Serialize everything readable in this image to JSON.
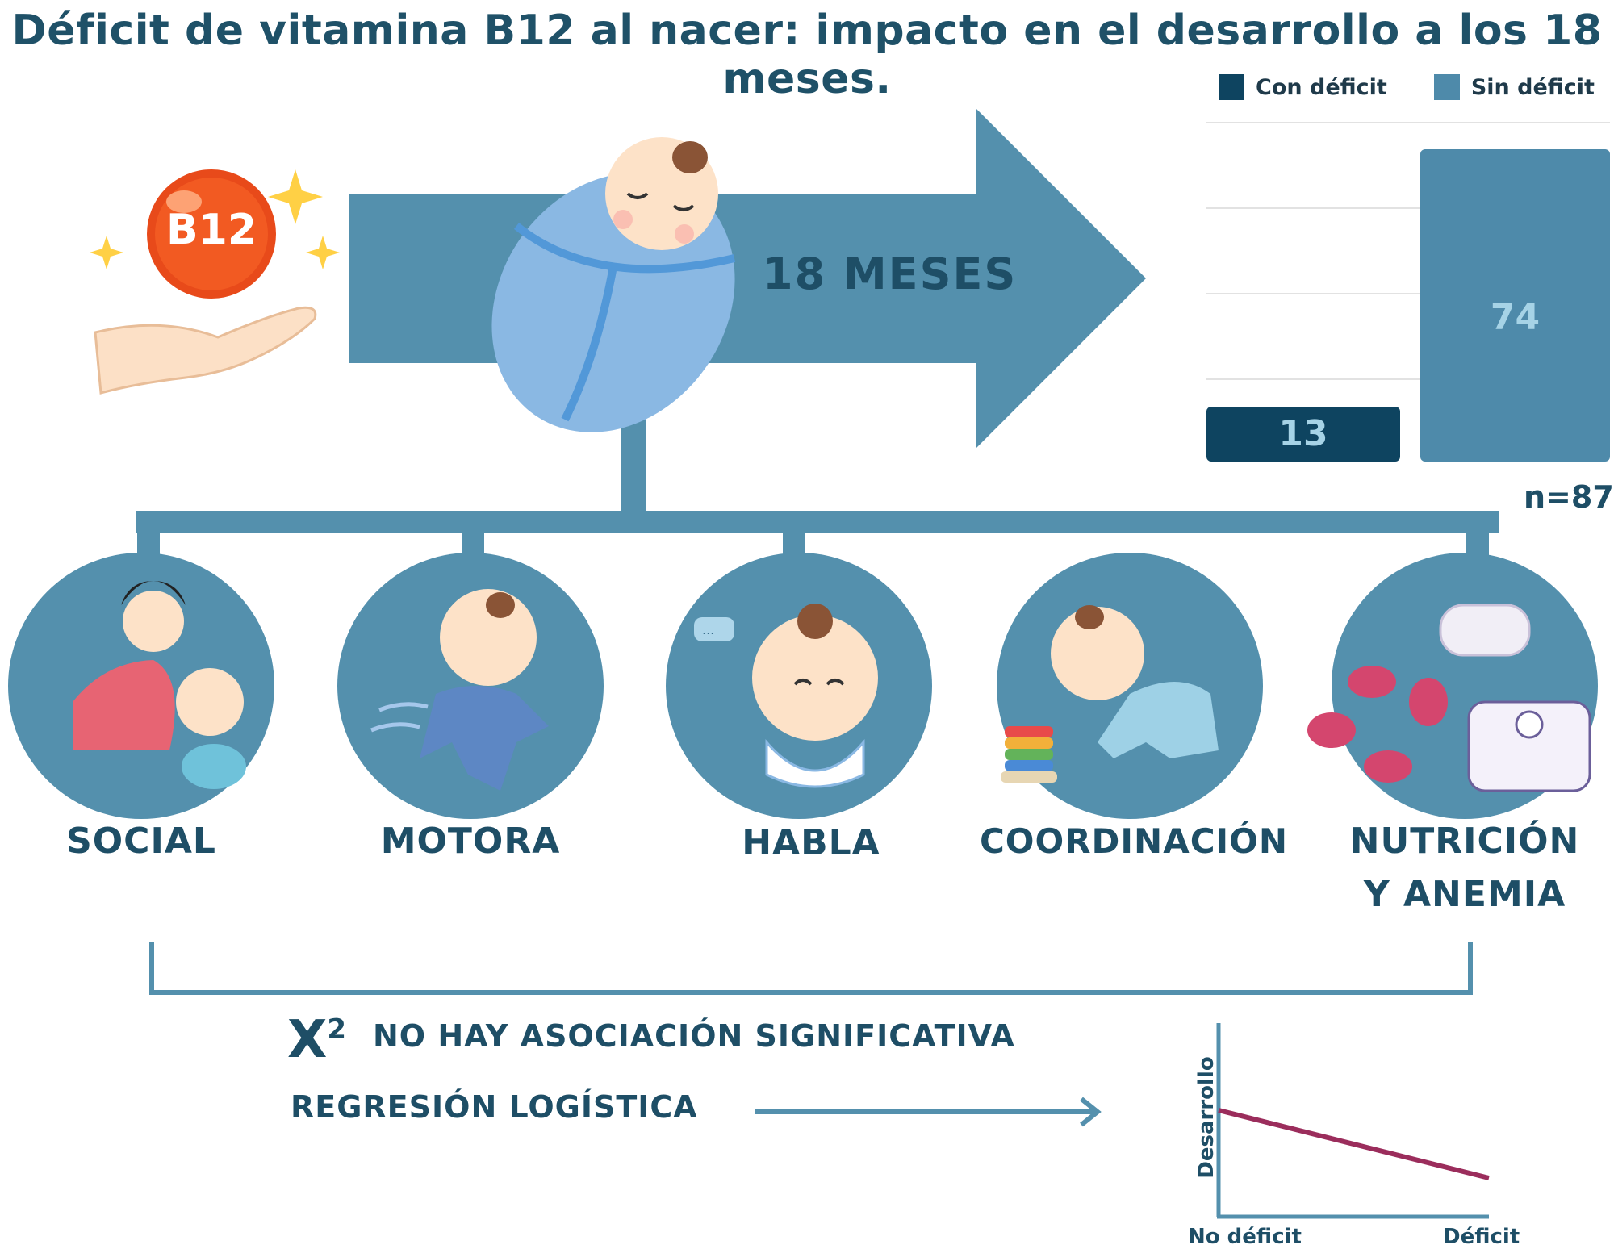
{
  "title": "Déficit de vitamina B12 al nacer: impacto en el desarrollo a los 18 meses.",
  "vitamin_badge": "B12",
  "arrow_label": "18 MESES",
  "legend": [
    {
      "label": "Con déficit",
      "color": "#0e4460"
    },
    {
      "label": "Sin déficit",
      "color": "#4e8aaa"
    }
  ],
  "chart_data": [
    {
      "type": "bar",
      "categories": [
        "Con déficit",
        "Sin déficit"
      ],
      "values": [
        13,
        74
      ],
      "colors": [
        "#0e4460",
        "#4e8aaa"
      ],
      "value_label_colors": [
        "#a6d3e6",
        "#a6d3e6"
      ],
      "grid": true,
      "legend_position": "top-right",
      "note": "n=87"
    },
    {
      "type": "line",
      "categories": [
        "No déficit",
        "Déficit"
      ],
      "ylabel": "Desarrollo",
      "xlabel": "",
      "series": [
        {
          "values": [
            0.55,
            0.2
          ],
          "color": "#9b2d5c"
        }
      ]
    }
  ],
  "categories": [
    {
      "label": "SOCIAL",
      "icon": "mother-baby-icon"
    },
    {
      "label": "MOTORA",
      "icon": "running-toddler-icon"
    },
    {
      "label": "HABLA",
      "icon": "talking-baby-icon"
    },
    {
      "label": "COORDINACIÓN",
      "icon": "crawling-baby-icon"
    },
    {
      "label": "NUTRICIÓN",
      "label2": "Y ANEMIA",
      "icon": "nutrition-anemia-icon"
    }
  ],
  "results": {
    "chi_symbol": "X",
    "chi_power": "2",
    "chi_text": "NO HAY ASOCIACIÓN SIGNIFICATIVA",
    "regression_text": "REGRESIÓN LOGÍSTICA"
  },
  "colors": {
    "primary": "#5490ad",
    "dark": "#1e4e66",
    "circle": "#5490ad"
  }
}
